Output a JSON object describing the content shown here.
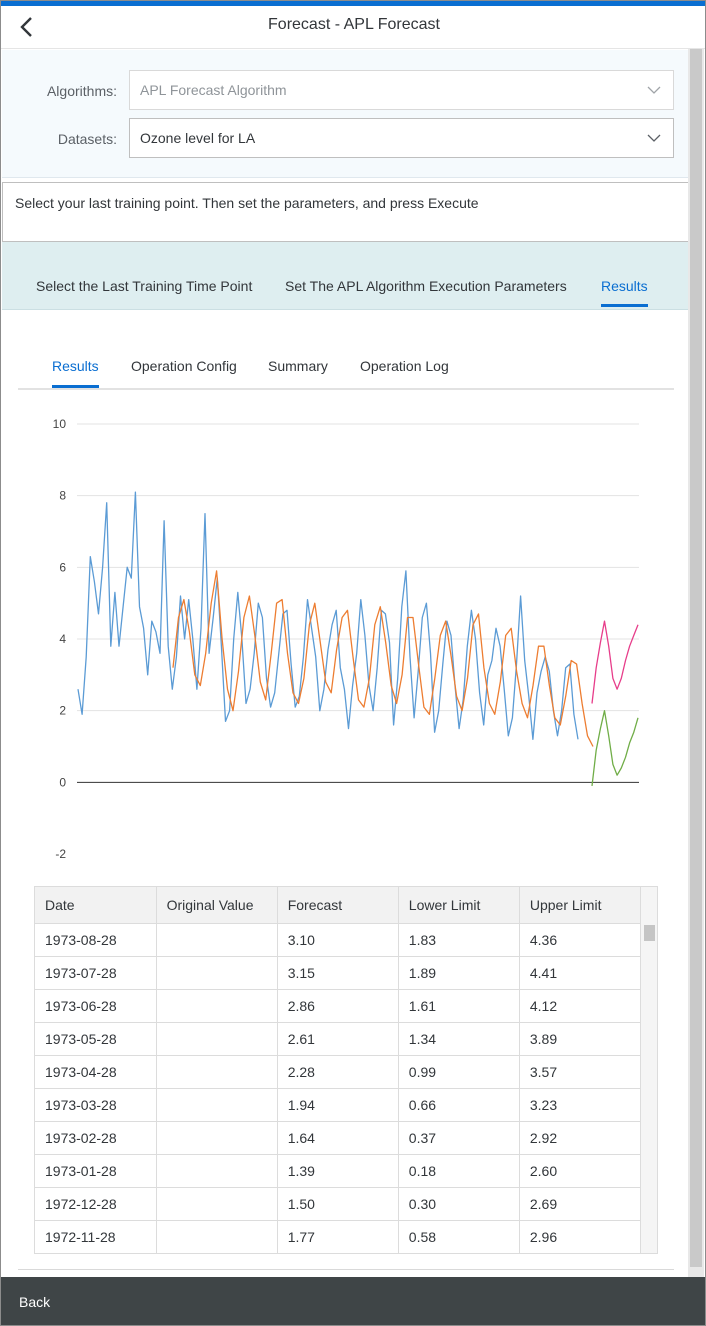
{
  "header": {
    "title": "Forecast - APL Forecast"
  },
  "form": {
    "algorithms_label": "Algorithms:",
    "algorithms_value": "APL Forecast Algorithm",
    "datasets_label": "Datasets:",
    "datasets_value": "Ozone level for LA"
  },
  "message": "Select your last training point. Then set the parameters, and press Execute",
  "wizard": {
    "steps": [
      {
        "label": "Select the Last Training Time Point"
      },
      {
        "label": "Set The APL Algorithm Execution Parameters"
      },
      {
        "label": "Results"
      }
    ],
    "active_index": 2
  },
  "subtabs": {
    "items": [
      {
        "label": "Results"
      },
      {
        "label": "Operation Config"
      },
      {
        "label": "Summary"
      },
      {
        "label": "Operation Log"
      }
    ],
    "active_index": 0
  },
  "chart_data": {
    "type": "line",
    "ylim": [
      -2,
      10
    ],
    "yticks": [
      "10",
      "8",
      "6",
      "4",
      "2",
      "0",
      "-2"
    ],
    "grid": true,
    "series": [
      {
        "color": "#5b9bd5",
        "values": [
          2.6,
          1.9,
          3.5,
          6.3,
          5.6,
          4.7,
          6.0,
          7.8,
          3.8,
          5.3,
          3.8,
          4.9,
          6.0,
          5.7,
          8.1,
          4.9,
          4.3,
          3.0,
          4.5,
          4.2,
          3.6,
          7.3,
          3.8,
          2.6,
          3.5,
          5.2,
          4.0,
          5.1,
          4.0,
          2.6,
          4.3,
          7.5,
          3.6,
          4.6,
          5.7,
          3.8,
          1.7,
          2.0,
          4.0,
          5.3,
          4.0,
          2.2,
          2.6,
          3.6,
          5.0,
          4.6,
          2.9,
          2.1,
          2.5,
          3.6,
          4.7,
          4.8,
          3.3,
          2.1,
          2.4,
          3.5,
          5.1,
          4.3,
          3.5,
          2.0,
          2.6,
          3.7,
          4.4,
          4.8,
          3.2,
          2.6,
          1.5,
          2.7,
          3.6,
          5.1,
          4.1,
          2.7,
          2.0,
          3.2,
          4.8,
          4.7,
          3.9,
          1.6,
          2.9,
          4.9,
          5.9,
          3.5,
          1.8,
          3.1,
          4.6,
          5.0,
          3.6,
          1.4,
          2.0,
          3.3,
          4.5,
          4.1,
          2.7,
          1.5,
          2.3,
          3.8,
          4.8,
          4.0,
          2.5,
          1.6,
          3.0,
          3.4,
          4.3,
          3.8,
          2.6,
          1.3,
          1.8,
          3.3,
          5.2,
          3.4,
          2.4,
          1.2,
          2.5,
          3.1,
          3.5,
          3.1,
          2.0,
          1.3,
          2.0,
          3.2,
          3.3,
          1.9,
          1.2
        ]
      },
      {
        "color": "#ed7d31",
        "values": [
          3.2,
          4.6,
          5.1,
          4.2,
          3.0,
          2.7,
          3.6,
          5.0,
          5.9,
          4.0,
          2.6,
          2.0,
          3.1,
          4.6,
          5.2,
          4.1,
          2.8,
          2.3,
          3.6,
          5.0,
          5.1,
          3.6,
          2.5,
          2.2,
          2.9,
          4.4,
          5.0,
          3.9,
          2.8,
          2.5,
          3.7,
          4.6,
          4.8,
          3.5,
          2.3,
          2.1,
          2.9,
          4.4,
          4.9,
          3.9,
          2.7,
          2.2,
          3.0,
          4.6,
          4.6,
          3.3,
          2.1,
          1.9,
          2.9,
          4.1,
          4.5,
          3.5,
          2.4,
          2.0,
          2.9,
          4.4,
          4.7,
          3.2,
          2.2,
          1.9,
          2.8,
          4.1,
          4.3,
          3.1,
          2.2,
          1.8,
          2.7,
          3.8,
          3.8,
          2.7,
          1.8,
          1.6,
          2.4,
          3.4,
          3.3,
          2.2,
          1.3,
          1.0
        ]
      },
      {
        "color": "#70ad47",
        "values": [
          -0.1,
          0.9,
          1.5,
          2.0,
          1.3,
          0.5,
          0.2,
          0.4,
          0.7,
          1.1,
          1.4,
          1.8
        ]
      },
      {
        "color": "#e73d8a",
        "values": [
          2.2,
          3.2,
          3.9,
          4.5,
          3.8,
          2.9,
          2.6,
          2.9,
          3.4,
          3.8,
          4.1,
          4.4
        ]
      }
    ]
  },
  "table": {
    "headers": [
      "Date",
      "Original Value",
      "Forecast",
      "Lower Limit",
      "Upper Limit"
    ],
    "rows": [
      [
        "1973-08-28",
        "",
        "3.10",
        "1.83",
        "4.36"
      ],
      [
        "1973-07-28",
        "",
        "3.15",
        "1.89",
        "4.41"
      ],
      [
        "1973-06-28",
        "",
        "2.86",
        "1.61",
        "4.12"
      ],
      [
        "1973-05-28",
        "",
        "2.61",
        "1.34",
        "3.89"
      ],
      [
        "1973-04-28",
        "",
        "2.28",
        "0.99",
        "3.57"
      ],
      [
        "1973-03-28",
        "",
        "1.94",
        "0.66",
        "3.23"
      ],
      [
        "1973-02-28",
        "",
        "1.64",
        "0.37",
        "2.92"
      ],
      [
        "1973-01-28",
        "",
        "1.39",
        "0.18",
        "2.60"
      ],
      [
        "1972-12-28",
        "",
        "1.50",
        "0.30",
        "2.69"
      ],
      [
        "1972-11-28",
        "",
        "1.77",
        "0.58",
        "2.96"
      ]
    ]
  },
  "footer": {
    "back_label": "Back"
  }
}
